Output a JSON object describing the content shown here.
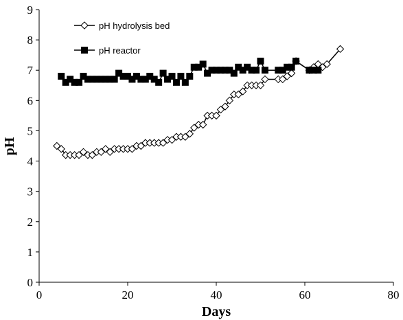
{
  "chart_data": {
    "type": "line",
    "x_label": "Days",
    "y_label": "pH",
    "xlim": [
      0,
      80
    ],
    "xticks": [
      0,
      20,
      40,
      60,
      80
    ],
    "ylim": [
      0,
      9
    ],
    "yticks": [
      0,
      1,
      2,
      3,
      4,
      5,
      6,
      7,
      8,
      9
    ],
    "grid": false,
    "legend": "upper left",
    "series": [
      {
        "name": "pH hydrolysis bed",
        "color": "#000000",
        "marker": "diamond",
        "x": [
          4,
          5,
          6,
          7,
          8,
          9,
          10,
          11,
          12,
          13,
          14,
          15,
          16,
          17,
          18,
          19,
          20,
          21,
          22,
          23,
          24,
          25,
          26,
          27,
          28,
          29,
          30,
          31,
          32,
          33,
          34,
          35,
          36,
          37,
          38,
          39,
          40,
          41,
          42,
          43,
          44,
          45,
          46,
          47,
          48,
          49,
          50,
          51,
          54,
          55,
          56,
          57,
          58,
          61,
          62,
          63,
          64,
          65,
          68
        ],
        "values": [
          4.5,
          4.4,
          4.2,
          4.2,
          4.2,
          4.2,
          4.3,
          4.2,
          4.2,
          4.3,
          4.3,
          4.4,
          4.3,
          4.4,
          4.4,
          4.4,
          4.4,
          4.4,
          4.5,
          4.5,
          4.6,
          4.6,
          4.6,
          4.6,
          4.6,
          4.7,
          4.7,
          4.8,
          4.8,
          4.8,
          4.9,
          5.1,
          5.2,
          5.2,
          5.5,
          5.5,
          5.5,
          5.7,
          5.8,
          6.0,
          6.2,
          6.2,
          6.3,
          6.5,
          6.5,
          6.5,
          6.5,
          6.7,
          6.7,
          6.7,
          6.8,
          6.9,
          7.3,
          7.0,
          7.1,
          7.2,
          7.1,
          7.2,
          7.7
        ]
      },
      {
        "name": "pH reactor",
        "color": "#000000",
        "marker": "square",
        "x": [
          5,
          6,
          7,
          8,
          9,
          10,
          11,
          12,
          13,
          14,
          15,
          16,
          17,
          18,
          19,
          20,
          21,
          22,
          23,
          24,
          25,
          26,
          27,
          28,
          29,
          30,
          31,
          32,
          33,
          34,
          35,
          36,
          37,
          38,
          39,
          40,
          41,
          42,
          43,
          44,
          45,
          46,
          47,
          48,
          49,
          50,
          51,
          54,
          55,
          56,
          57,
          58,
          61,
          62,
          63
        ],
        "values": [
          6.8,
          6.6,
          6.7,
          6.6,
          6.6,
          6.8,
          6.7,
          6.7,
          6.7,
          6.7,
          6.7,
          6.7,
          6.7,
          6.9,
          6.8,
          6.8,
          6.7,
          6.8,
          6.7,
          6.7,
          6.8,
          6.7,
          6.6,
          6.9,
          6.7,
          6.8,
          6.6,
          6.8,
          6.6,
          6.8,
          7.1,
          7.1,
          7.2,
          6.9,
          7.0,
          7.0,
          7.0,
          7.0,
          7.0,
          6.9,
          7.1,
          7.0,
          7.1,
          7.0,
          7.0,
          7.3,
          7.0,
          7.0,
          7.0,
          7.1,
          7.1,
          7.3,
          7.0,
          7.0,
          7.0
        ]
      }
    ]
  }
}
